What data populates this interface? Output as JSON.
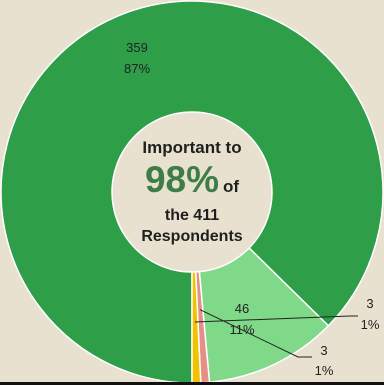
{
  "center": {
    "line1": "Important to",
    "highlight": "98%",
    "highlight_suffix": "of",
    "line3": "the 411",
    "line4": "Respondents"
  },
  "colors": {
    "background": "#e9e1cf",
    "highlight": "#3c7e46"
  },
  "chart_data": {
    "type": "pie",
    "donut": true,
    "start_angle_deg": 180,
    "direction": "clockwise",
    "categories": [
      "",
      "",
      "",
      ""
    ],
    "values": [
      359,
      46,
      3,
      3
    ],
    "percents": [
      "87%",
      "11%",
      "1%",
      "1%"
    ],
    "colors": [
      "#2e9e49",
      "#7fd989",
      "#e58f86",
      "#f2c200"
    ],
    "data_labels": [
      {
        "value": "359",
        "percent": "87%"
      },
      {
        "value": "46",
        "percent": "11%"
      },
      {
        "value": "3",
        "percent": "1%"
      },
      {
        "value": "3",
        "percent": "1%"
      }
    ],
    "title": "",
    "legend": "none"
  }
}
